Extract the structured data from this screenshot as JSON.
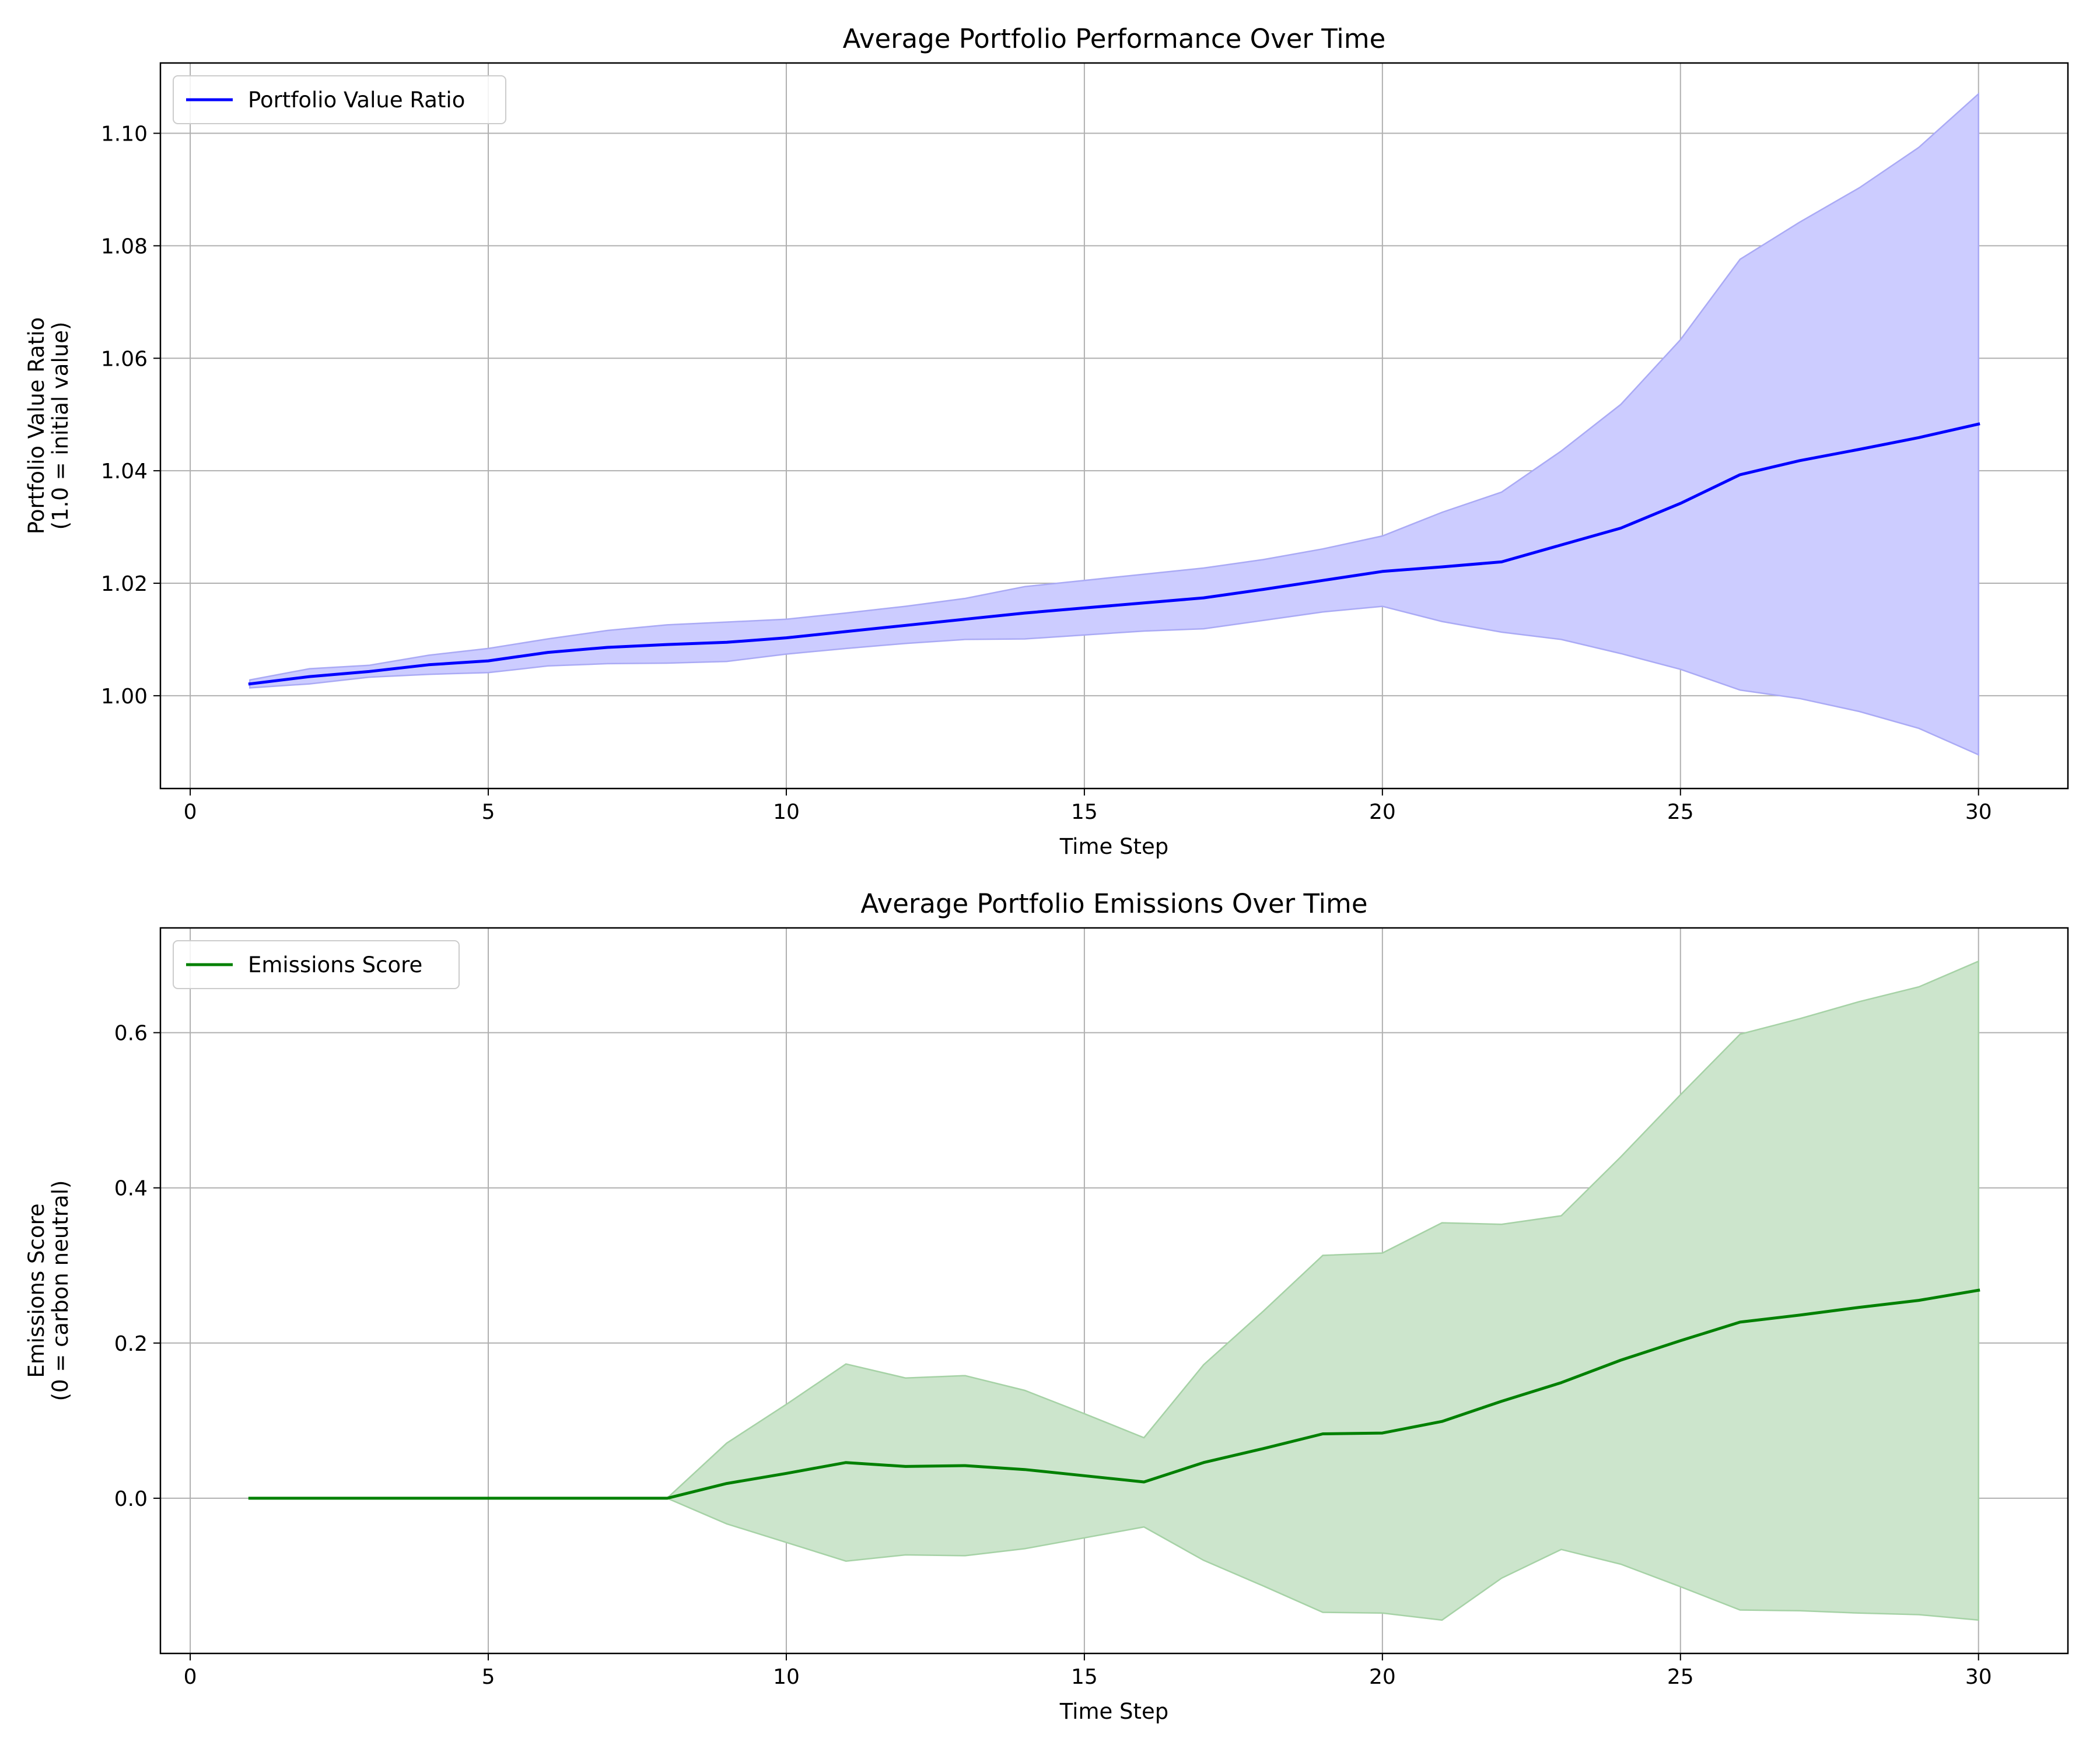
{
  "chart_data": [
    {
      "type": "line",
      "title": "Average Portfolio Performance Over Time",
      "xlabel": "Time Step",
      "ylabel": [
        "Portfolio Value Ratio",
        "(1.0 = initial value)"
      ],
      "xlim": [
        -0.5,
        31.5
      ],
      "ylim": [
        0.9835,
        1.1125
      ],
      "xticks": [
        0,
        5,
        10,
        15,
        20,
        25,
        30
      ],
      "yticks": [
        1.0,
        1.02,
        1.04,
        1.06,
        1.08,
        1.1
      ],
      "ytick_decimals": 2,
      "grid": true,
      "legend": "top-left",
      "series": [
        {
          "name": "Portfolio Value Ratio",
          "color": "#0000ff",
          "fill": "#ccccff",
          "fill_edge": "#aaaaf5",
          "x": [
            1,
            2,
            3,
            4,
            5,
            6,
            7,
            8,
            9,
            10,
            11,
            12,
            13,
            14,
            15,
            16,
            17,
            18,
            19,
            20,
            21,
            22,
            23,
            24,
            25,
            26,
            27,
            28,
            29,
            30
          ],
          "mean": [
            1.0021,
            1.0034,
            1.0043,
            1.0055,
            1.0062,
            1.0077,
            1.0086,
            1.0091,
            1.0095,
            1.0103,
            1.0114,
            1.0125,
            1.0136,
            1.0147,
            1.0156,
            1.0165,
            1.0174,
            1.0189,
            1.0205,
            1.0221,
            1.0229,
            1.0238,
            1.0268,
            1.0298,
            1.0342,
            1.0393,
            1.0418,
            1.0438,
            1.0459,
            1.0483
          ],
          "upper": [
            1.0028,
            1.0048,
            1.0054,
            1.0072,
            1.0084,
            1.0101,
            1.0116,
            1.0126,
            1.0131,
            1.0136,
            1.0147,
            1.0159,
            1.0173,
            1.0194,
            1.0205,
            1.0216,
            1.0227,
            1.0242,
            1.0261,
            1.0284,
            1.0326,
            1.0362,
            1.0435,
            1.0518,
            1.0633,
            1.0776,
            1.0842,
            1.0903,
            1.0975,
            1.107
          ],
          "lower": [
            1.0014,
            1.0021,
            1.0033,
            1.0038,
            1.0041,
            1.0053,
            1.0057,
            1.0058,
            1.0061,
            1.0074,
            1.0084,
            1.0093,
            1.01,
            1.0101,
            1.0108,
            1.0115,
            1.0119,
            1.0134,
            1.0149,
            1.0159,
            1.0132,
            1.0113,
            1.01,
            1.0075,
            1.0047,
            1.001,
            0.9995,
            0.9972,
            0.9942,
            0.9895
          ]
        }
      ]
    },
    {
      "type": "line",
      "title": "Average Portfolio Emissions Over Time",
      "xlabel": "Time Step",
      "ylabel": [
        "Emissions Score",
        "(0 = carbon neutral)"
      ],
      "xlim": [
        -0.5,
        31.5
      ],
      "ylim": [
        -0.2,
        0.735
      ],
      "xticks": [
        0,
        5,
        10,
        15,
        20,
        25,
        30
      ],
      "yticks": [
        0.0,
        0.2,
        0.4,
        0.6
      ],
      "ytick_decimals": 1,
      "grid": true,
      "legend": "top-left",
      "series": [
        {
          "name": "Emissions Score",
          "color": "#008000",
          "fill": "#cce5cc",
          "fill_edge": "#a6d2a6",
          "x": [
            1,
            2,
            3,
            4,
            5,
            6,
            7,
            8,
            9,
            10,
            11,
            12,
            13,
            14,
            15,
            16,
            17,
            18,
            19,
            20,
            21,
            22,
            23,
            24,
            25,
            26,
            27,
            28,
            29,
            30
          ],
          "mean": [
            0,
            0,
            0,
            0,
            0,
            0,
            0,
            0,
            0.019,
            0.032,
            0.046,
            0.041,
            0.042,
            0.037,
            0.029,
            0.021,
            0.046,
            0.064,
            0.083,
            0.084,
            0.099,
            0.125,
            0.149,
            0.178,
            0.203,
            0.227,
            0.236,
            0.246,
            0.255,
            0.268
          ],
          "upper": [
            0,
            0,
            0,
            0,
            0,
            0,
            0,
            0,
            0.071,
            0.121,
            0.173,
            0.155,
            0.158,
            0.139,
            0.109,
            0.078,
            0.172,
            0.241,
            0.313,
            0.316,
            0.355,
            0.353,
            0.364,
            0.44,
            0.52,
            0.598,
            0.618,
            0.64,
            0.659,
            0.692
          ],
          "lower": [
            0,
            0,
            0,
            0,
            0,
            0,
            0,
            0,
            -0.033,
            -0.057,
            -0.081,
            -0.073,
            -0.074,
            -0.065,
            -0.051,
            -0.037,
            -0.08,
            -0.113,
            -0.147,
            -0.148,
            -0.157,
            -0.103,
            -0.066,
            -0.085,
            -0.114,
            -0.144,
            -0.145,
            -0.148,
            -0.15,
            -0.157
          ]
        }
      ]
    }
  ]
}
